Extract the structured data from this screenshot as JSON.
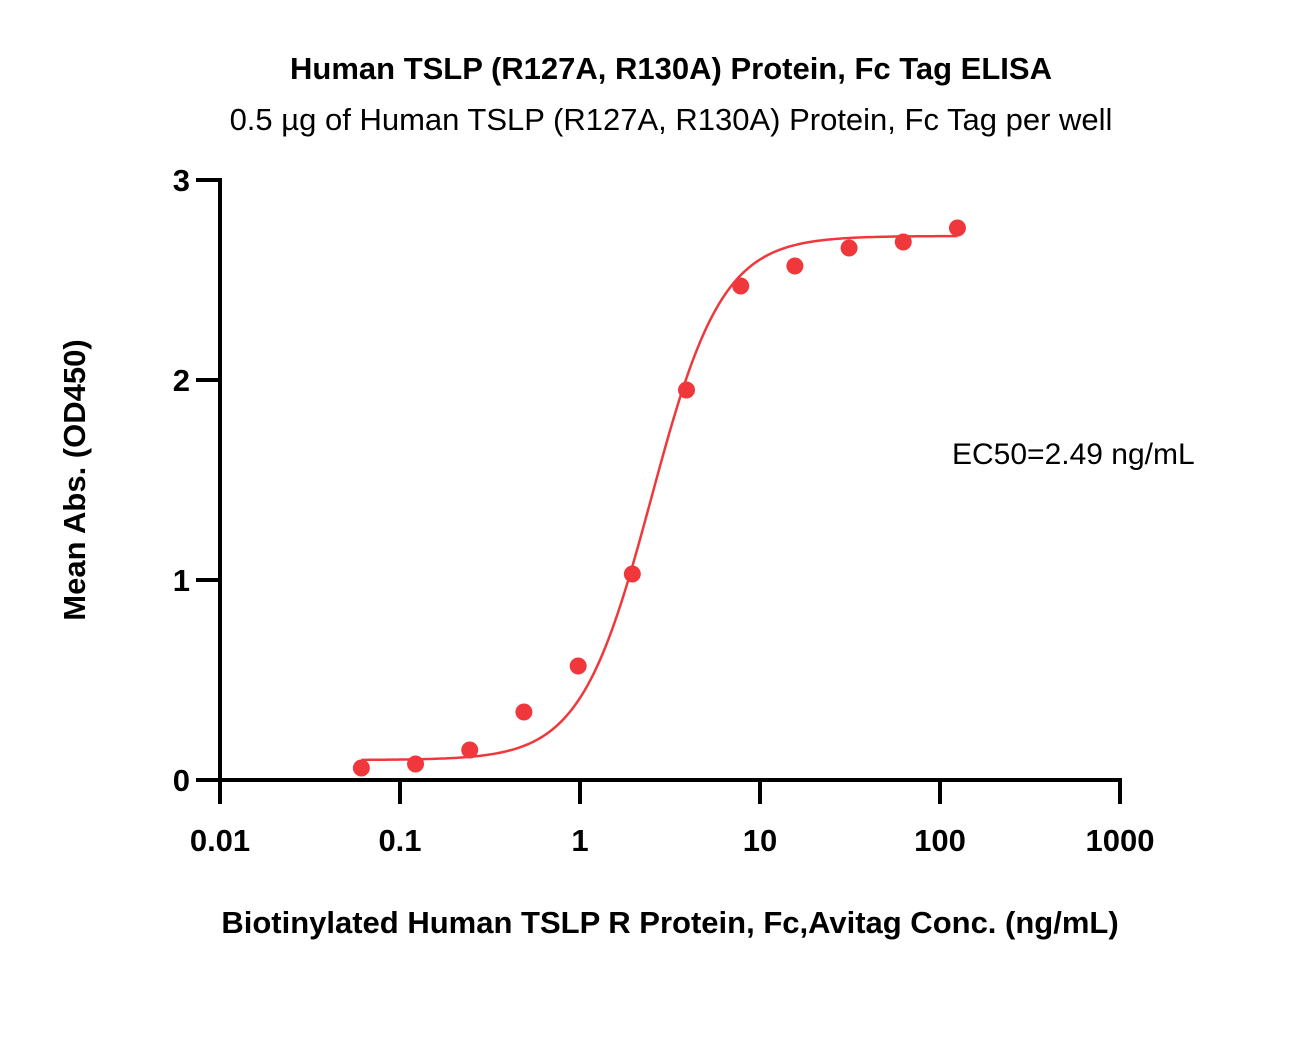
{
  "chart_data": {
    "type": "scatter",
    "title": "Human TSLP (R127A, R130A) Protein, Fc Tag ELISA",
    "subtitle": "0.5 µg of Human TSLP (R127A, R130A) Protein, Fc Tag per well",
    "xlabel": "Biotinylated Human TSLP R Protein, Fc,Avitag Conc. (ng/mL)",
    "ylabel": "Mean Abs. (OD450)",
    "x_scale": "log",
    "xlim": [
      0.01,
      1000
    ],
    "ylim": [
      0,
      3
    ],
    "x_ticks": [
      "0.01",
      "0.1",
      "1",
      "10",
      "100",
      "1000"
    ],
    "y_ticks": [
      "0",
      "1",
      "2",
      "3"
    ],
    "grid": false,
    "series": [
      {
        "color": "#f0383c",
        "points": [
          {
            "x": 0.061,
            "y": 0.06
          },
          {
            "x": 0.122,
            "y": 0.08
          },
          {
            "x": 0.244,
            "y": 0.15
          },
          {
            "x": 0.488,
            "y": 0.34
          },
          {
            "x": 0.977,
            "y": 0.57
          },
          {
            "x": 1.953,
            "y": 1.03
          },
          {
            "x": 3.906,
            "y": 1.95
          },
          {
            "x": 7.813,
            "y": 2.47
          },
          {
            "x": 15.625,
            "y": 2.57
          },
          {
            "x": 31.25,
            "y": 2.66
          },
          {
            "x": 62.5,
            "y": 2.69
          },
          {
            "x": 125,
            "y": 2.76
          }
        ],
        "fit": {
          "bottom": 0.1,
          "top": 2.72,
          "ec50": 2.49,
          "hill": 2.2
        }
      }
    ],
    "annotation": "EC50=2.49 ng/mL"
  }
}
